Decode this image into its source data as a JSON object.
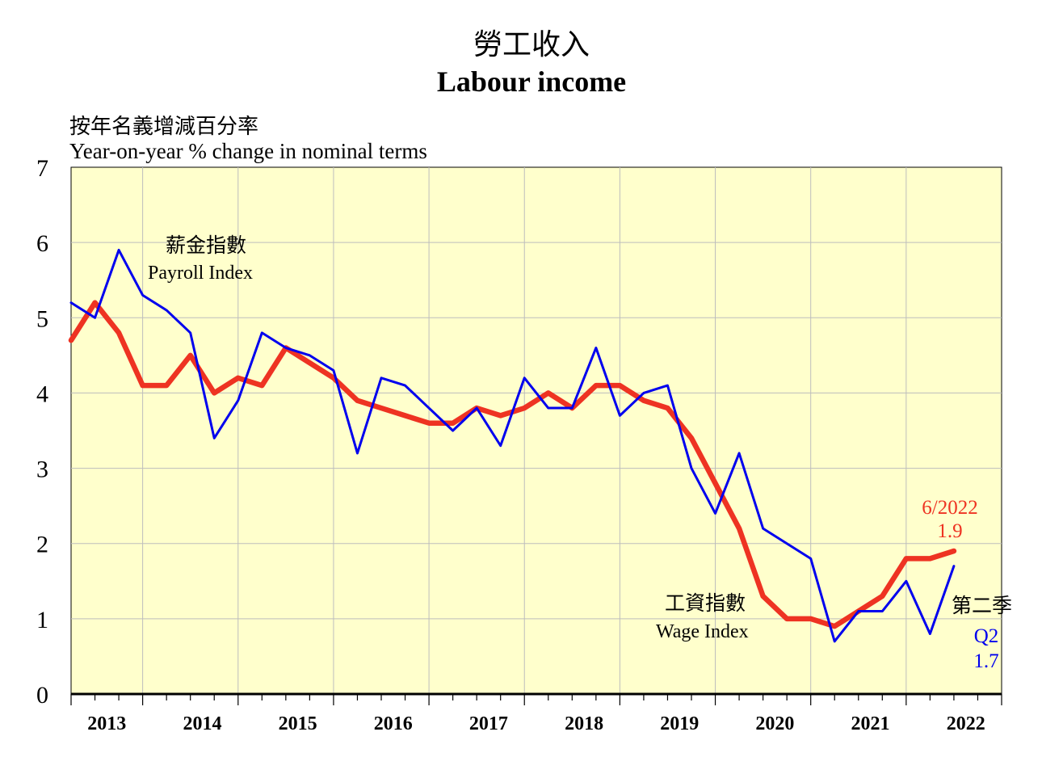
{
  "chart_data": {
    "type": "line",
    "title_cn": "勞工收入",
    "title": "Labour income",
    "ylabel_cn": "按年名義增減百分率",
    "ylabel": "Year-on-year %  change in nominal terms",
    "ylim": [
      0,
      7
    ],
    "yticks": [
      "0",
      "1",
      "2",
      "3",
      "4",
      "5",
      "6",
      "7"
    ],
    "years": [
      "2013",
      "2014",
      "2015",
      "2016",
      "2017",
      "2018",
      "2019",
      "2020",
      "2021",
      "2022"
    ],
    "grid": true,
    "series": [
      {
        "name": "Payroll Index",
        "name_cn": "薪金指數",
        "color": "#0000ee",
        "values": [
          5.2,
          5.0,
          5.9,
          5.3,
          5.1,
          4.8,
          3.4,
          3.9,
          4.8,
          4.6,
          4.5,
          4.3,
          3.2,
          4.2,
          4.1,
          3.8,
          3.5,
          3.8,
          3.3,
          4.2,
          3.8,
          3.8,
          4.6,
          3.7,
          4.0,
          4.1,
          3.0,
          2.4,
          3.2,
          2.2,
          2.0,
          1.8,
          0.7,
          1.1,
          1.1,
          1.5,
          0.8,
          1.7
        ]
      },
      {
        "name": "Wage Index",
        "name_cn": "工資指數",
        "color": "#ee3322",
        "values": [
          4.7,
          5.2,
          4.8,
          4.1,
          4.1,
          4.5,
          4.0,
          4.2,
          4.1,
          4.6,
          4.4,
          4.2,
          3.9,
          3.8,
          3.7,
          3.6,
          3.6,
          3.8,
          3.7,
          3.8,
          4.0,
          3.8,
          4.1,
          4.1,
          3.9,
          3.8,
          3.4,
          2.8,
          2.2,
          1.3,
          1.0,
          1.0,
          0.9,
          1.1,
          1.3,
          1.8,
          1.8,
          1.9
        ]
      }
    ],
    "annotations": {
      "payroll_cn": "薪金指數",
      "payroll_en": "Payroll Index",
      "wage_cn": "工資指數",
      "wage_en": "Wage Index",
      "wage_last_period": "6/2022",
      "wage_last_value": "1.9",
      "payroll_last_cn": "第二季",
      "payroll_last_period": "Q2",
      "payroll_last_value": "1.7"
    },
    "colors": {
      "plot_background": "#ffffcc"
    }
  }
}
